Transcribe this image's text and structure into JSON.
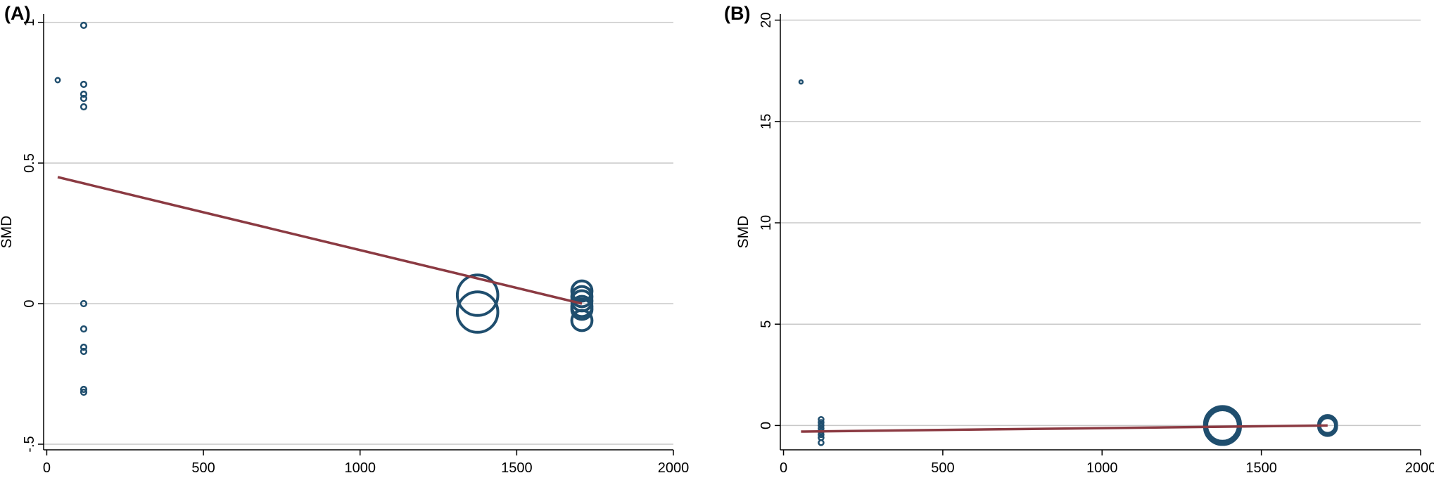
{
  "chart_data": [
    {
      "panel_label": "(A)",
      "type": "scatter",
      "ylabel": "SMD",
      "xlabel": "",
      "xlim": [
        -10,
        2000
      ],
      "ylim": [
        -0.52,
        1.03
      ],
      "xticks": [
        0,
        500,
        1000,
        1500,
        2000
      ],
      "yticks": [
        -0.5,
        0,
        0.5,
        1
      ],
      "ytick_labels": [
        "-.5",
        "0",
        "0.5",
        "1"
      ],
      "grid": true,
      "colors": {
        "points": "#1f4e6e",
        "fit_line": "#8b3a42",
        "grid": "#c8c8c8"
      },
      "points": [
        {
          "x": 35,
          "y": 0.795,
          "weight": 1
        },
        {
          "x": 118,
          "y": 0.99,
          "weight": 1.2
        },
        {
          "x": 118,
          "y": 0.78,
          "weight": 1.2
        },
        {
          "x": 118,
          "y": 0.745,
          "weight": 1.2
        },
        {
          "x": 118,
          "y": 0.73,
          "weight": 1.2
        },
        {
          "x": 118,
          "y": 0.7,
          "weight": 1.2
        },
        {
          "x": 118,
          "y": 0.0,
          "weight": 1.2
        },
        {
          "x": 118,
          "y": -0.09,
          "weight": 1.2
        },
        {
          "x": 118,
          "y": -0.155,
          "weight": 1.2
        },
        {
          "x": 118,
          "y": -0.17,
          "weight": 1.2
        },
        {
          "x": 118,
          "y": -0.305,
          "weight": 1.2
        },
        {
          "x": 118,
          "y": -0.315,
          "weight": 1.2
        },
        {
          "x": 1375,
          "y": 0.03,
          "weight": 9
        },
        {
          "x": 1375,
          "y": -0.03,
          "weight": 9
        },
        {
          "x": 1708,
          "y": 0.045,
          "weight": 4.5
        },
        {
          "x": 1708,
          "y": 0.025,
          "weight": 4.5
        },
        {
          "x": 1708,
          "y": 0.01,
          "weight": 4.5
        },
        {
          "x": 1708,
          "y": -0.01,
          "weight": 4.5
        },
        {
          "x": 1708,
          "y": -0.02,
          "weight": 4.5
        },
        {
          "x": 1708,
          "y": -0.06,
          "weight": 4.5
        }
      ],
      "fit_line": {
        "x": [
          35,
          1708
        ],
        "y": [
          0.45,
          0.0
        ]
      }
    },
    {
      "panel_label": "(B)",
      "type": "scatter",
      "ylabel": "SMD",
      "xlabel": "",
      "xlim": [
        -10,
        2000
      ],
      "ylim": [
        -1.2,
        20.3
      ],
      "xticks": [
        0,
        500,
        1000,
        1500,
        2000
      ],
      "yticks": [
        0,
        5,
        10,
        15,
        20
      ],
      "ytick_labels": [
        "0",
        "5",
        "10",
        "15",
        "20"
      ],
      "grid": true,
      "colors": {
        "points": "#1f4e6e",
        "fit_line": "#8b3a42",
        "grid": "#c8c8c8"
      },
      "points": [
        {
          "x": 55,
          "y": 16.95,
          "weight": 0.5
        },
        {
          "x": 118,
          "y": 0.3,
          "weight": 1.1
        },
        {
          "x": 118,
          "y": 0.15,
          "weight": 1.1
        },
        {
          "x": 118,
          "y": 0.0,
          "weight": 1.1
        },
        {
          "x": 118,
          "y": -0.15,
          "weight": 1.1
        },
        {
          "x": 118,
          "y": -0.3,
          "weight": 1.1
        },
        {
          "x": 118,
          "y": -0.45,
          "weight": 1.1
        },
        {
          "x": 118,
          "y": -0.6,
          "weight": 1.1
        },
        {
          "x": 118,
          "y": -0.85,
          "weight": 1.1
        },
        {
          "x": 1378,
          "y": 0.05,
          "weight": 8
        },
        {
          "x": 1378,
          "y": -0.05,
          "weight": 8
        },
        {
          "x": 1378,
          "y": 0.0,
          "weight": 7
        },
        {
          "x": 1708,
          "y": 0.05,
          "weight": 4
        },
        {
          "x": 1708,
          "y": -0.05,
          "weight": 4
        },
        {
          "x": 1708,
          "y": 0.0,
          "weight": 3.5
        }
      ],
      "fit_line": {
        "x": [
          55,
          1708
        ],
        "y": [
          -0.3,
          0.0
        ]
      }
    }
  ]
}
